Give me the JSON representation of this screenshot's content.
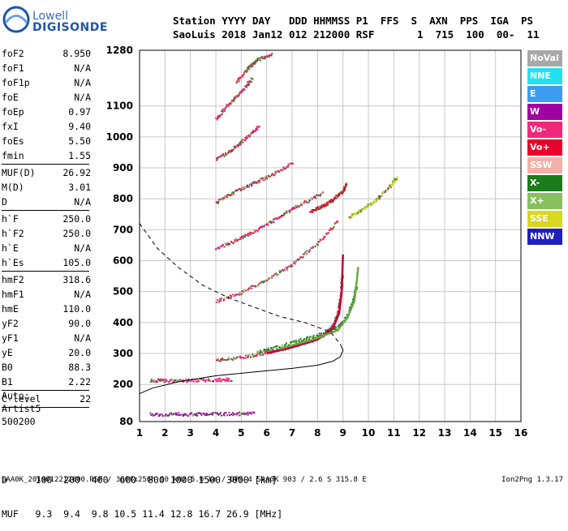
{
  "logo": {
    "line1": "Lowell",
    "line2": "DIGISONDE"
  },
  "header": {
    "line1": "Station YYYY DAY   DDD HHMMSS P1  FFS  S  AXN  PPS  IGA  PS",
    "line2": "SaoLuis 2018 Jan12 012 212000 RSF       1  715  100  00-  11"
  },
  "params_groups": [
    [
      [
        "foF2",
        "8.950"
      ],
      [
        "foF1",
        "N/A"
      ],
      [
        "foF1p",
        "N/A"
      ],
      [
        "foE",
        "N/A"
      ],
      [
        "foEp",
        "0.97"
      ],
      [
        "fxI",
        "9.40"
      ],
      [
        "foEs",
        "5.50"
      ],
      [
        "fmin",
        "1.55"
      ]
    ],
    [
      [
        "MUF(D)",
        "26.92"
      ],
      [
        "M(D)",
        "3.01"
      ],
      [
        "D",
        "N/A"
      ]
    ],
    [
      [
        "h`F",
        "250.0"
      ],
      [
        "h`F2",
        "250.0"
      ],
      [
        "h`E",
        "N/A"
      ],
      [
        "h`Es",
        "105.0"
      ]
    ],
    [
      [
        "hmF2",
        "318.6"
      ],
      [
        "hmF1",
        "N/A"
      ],
      [
        "hmE",
        "110.0"
      ],
      [
        "yF2",
        "90.0"
      ],
      [
        "yF1",
        "N/A"
      ],
      [
        "yE",
        "20.0"
      ],
      [
        "B0",
        "88.3"
      ],
      [
        "B1",
        "2.22"
      ]
    ],
    [
      [
        "C-level",
        "22"
      ]
    ]
  ],
  "auto": {
    "l1": "Auto:",
    "l2": "Artist5",
    "l3": "500200"
  },
  "legend": [
    {
      "label": "NoVal",
      "color": "#a8a8a8"
    },
    {
      "label": "NNE",
      "color": "#22e0f0"
    },
    {
      "label": "E",
      "color": "#3c9cf0"
    },
    {
      "label": "W",
      "color": "#a000a0"
    },
    {
      "label": "Vo-",
      "color": "#f0287c"
    },
    {
      "label": "Vo+",
      "color": "#e8002c"
    },
    {
      "label": "SSW",
      "color": "#f4b0a8"
    },
    {
      "label": "X-",
      "color": "#1c7c1c"
    },
    {
      "label": "X+",
      "color": "#88c060"
    },
    {
      "label": "SSE",
      "color": "#d8d820"
    },
    {
      "label": "NNW",
      "color": "#2020c0"
    }
  ],
  "bottom": {
    "line1": "D     100  200  400  600  800 1000 1500 3000 [km]",
    "line2": "MUF   9.3  9.4  9.8 10.5 11.4 12.8 16.7 26.9 [MHz]"
  },
  "footer": {
    "left": "SAA0K_2018012212000.RSF / 300fx256h 50 kHz 5.0 km / DPS-4 SAA0K 903 / 2.6 S 315.8 E",
    "right": "Ion2Png 1.3.17"
  },
  "chart_data": {
    "type": "scatter",
    "xlim": [
      1,
      16
    ],
    "ylim": [
      80,
      1280
    ],
    "xticks": [
      1,
      2,
      3,
      4,
      5,
      6,
      7,
      8,
      9,
      10,
      11,
      12,
      13,
      14,
      15,
      16
    ],
    "yticks": [
      80,
      200,
      300,
      400,
      500,
      600,
      700,
      800,
      900,
      1000,
      1100,
      1280
    ],
    "grid": true,
    "traces": [
      {
        "name": "O-trace F2",
        "color": "#e03060",
        "points": [
          [
            4,
            280
          ],
          [
            5,
            290
          ],
          [
            6,
            305
          ],
          [
            7,
            325
          ],
          [
            7.8,
            345
          ],
          [
            8.3,
            365
          ],
          [
            8.6,
            395
          ],
          [
            8.8,
            440
          ],
          [
            8.9,
            500
          ],
          [
            8.95,
            560
          ]
        ]
      },
      {
        "name": "X-trace F2",
        "color": "#208020",
        "points": [
          [
            5.6,
            305
          ],
          [
            6.5,
            325
          ],
          [
            7.5,
            350
          ],
          [
            8.4,
            370
          ],
          [
            8.9,
            395
          ],
          [
            9.2,
            430
          ],
          [
            9.4,
            480
          ],
          [
            9.5,
            520
          ]
        ]
      },
      {
        "name": "Es band",
        "color": "#f0287c",
        "points": [
          [
            1.4,
            215
          ],
          [
            2,
            215
          ],
          [
            3,
            215
          ],
          [
            4,
            217
          ],
          [
            4.6,
            218
          ]
        ]
      },
      {
        "name": "E low",
        "color": "#a000a0",
        "points": [
          [
            1.4,
            105
          ],
          [
            2.5,
            106
          ],
          [
            3.5,
            106
          ],
          [
            4.5,
            107
          ],
          [
            5.5,
            108
          ]
        ]
      },
      {
        "name": "multihop 2",
        "color": "#e03060",
        "points": [
          [
            4,
            470
          ],
          [
            5,
            500
          ],
          [
            6,
            540
          ],
          [
            7,
            590
          ],
          [
            8,
            660
          ],
          [
            8.8,
            730
          ]
        ]
      },
      {
        "name": "multihop 3",
        "color": "#e03060",
        "points": [
          [
            4,
            640
          ],
          [
            4.8,
            670
          ],
          [
            5.6,
            700
          ],
          [
            6.4,
            740
          ],
          [
            7.2,
            780
          ],
          [
            8.2,
            820
          ]
        ]
      },
      {
        "name": "multihop 4",
        "color": "#e03060",
        "points": [
          [
            4,
            790
          ],
          [
            4.6,
            820
          ],
          [
            5.4,
            850
          ],
          [
            6.2,
            880
          ],
          [
            7,
            920
          ]
        ]
      },
      {
        "name": "multihop 5",
        "color": "#e03060",
        "points": [
          [
            4,
            930
          ],
          [
            4.6,
            960
          ],
          [
            5.2,
            1000
          ],
          [
            5.7,
            1040
          ]
        ]
      },
      {
        "name": "multihop 6",
        "color": "#e03060",
        "points": [
          [
            4,
            1060
          ],
          [
            4.5,
            1110
          ],
          [
            5,
            1150
          ],
          [
            5.4,
            1190
          ]
        ]
      },
      {
        "name": "multihop 7",
        "color": "#e03060",
        "points": [
          [
            4.8,
            1180
          ],
          [
            5.2,
            1220
          ],
          [
            5.6,
            1250
          ],
          [
            6.2,
            1270
          ]
        ]
      },
      {
        "name": "F high cusp",
        "color": "#e8002c",
        "points": [
          [
            7.7,
            760
          ],
          [
            8.2,
            780
          ],
          [
            8.6,
            800
          ],
          [
            9,
            830
          ],
          [
            9.1,
            850
          ]
        ]
      },
      {
        "name": "SSE cluster",
        "color": "#d8d820",
        "points": [
          [
            9.2,
            740
          ],
          [
            9.8,
            770
          ],
          [
            10.3,
            800
          ],
          [
            10.8,
            840
          ],
          [
            11.1,
            870
          ]
        ]
      }
    ],
    "profile_solid": [
      [
        1,
        170
      ],
      [
        1.5,
        188
      ],
      [
        2.5,
        208
      ],
      [
        4,
        228
      ],
      [
        5.5,
        240
      ],
      [
        7,
        252
      ],
      [
        8,
        262
      ],
      [
        8.6,
        275
      ],
      [
        8.9,
        290
      ],
      [
        9,
        310
      ],
      [
        8.9,
        330
      ]
    ],
    "profile_dashed": [
      [
        1,
        720
      ],
      [
        1.7,
        640
      ],
      [
        2.5,
        580
      ],
      [
        3.5,
        520
      ],
      [
        4.5,
        480
      ],
      [
        5.5,
        450
      ],
      [
        6.5,
        420
      ],
      [
        7.5,
        400
      ],
      [
        8.5,
        370
      ],
      [
        8.9,
        330
      ]
    ],
    "o_profile": [
      [
        6,
        300
      ],
      [
        7,
        320
      ],
      [
        8,
        345
      ],
      [
        8.6,
        380
      ],
      [
        8.85,
        430
      ],
      [
        8.95,
        500
      ],
      [
        9,
        620
      ]
    ],
    "x_profile": [
      [
        6.5,
        315
      ],
      [
        7.8,
        345
      ],
      [
        8.8,
        375
      ],
      [
        9.2,
        420
      ],
      [
        9.45,
        470
      ],
      [
        9.55,
        540
      ],
      [
        9.6,
        580
      ]
    ]
  }
}
